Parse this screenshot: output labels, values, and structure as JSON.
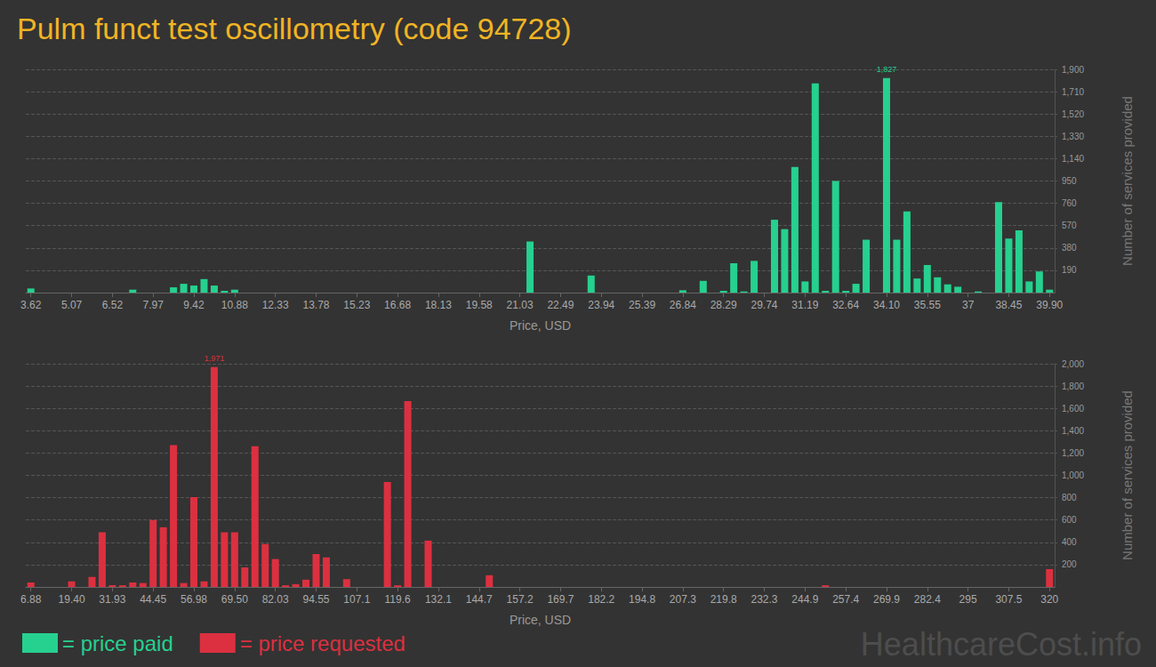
{
  "chart_data": [
    {
      "type": "bar",
      "title": "Pulm funct test oscillometry (code 94728)",
      "x_label": "Price, USD",
      "y_label": "Number of services provided",
      "categories": [
        "3.62",
        null,
        null,
        null,
        "5.07",
        null,
        null,
        null,
        "6.52",
        null,
        null,
        null,
        "7.97",
        null,
        null,
        null,
        "9.42",
        null,
        null,
        null,
        "10.88",
        null,
        null,
        null,
        "12.33",
        null,
        null,
        null,
        "13.78",
        null,
        null,
        null,
        "15.23",
        null,
        null,
        null,
        "16.68",
        null,
        null,
        null,
        "18.13",
        null,
        null,
        null,
        "19.58",
        null,
        null,
        null,
        "21.03",
        null,
        null,
        null,
        "22.49",
        null,
        null,
        null,
        "23.94",
        null,
        null,
        null,
        "25.39",
        null,
        null,
        null,
        "26.84",
        null,
        null,
        null,
        "28.29",
        null,
        null,
        null,
        "29.74",
        null,
        null,
        null,
        "31.19",
        null,
        null,
        null,
        "32.64",
        null,
        null,
        null,
        "34.10",
        null,
        null,
        null,
        "35.55",
        null,
        null,
        null,
        "37",
        null,
        null,
        null,
        "38.45",
        null,
        null,
        null,
        "39.90"
      ],
      "series": [
        {
          "name": "= price paid",
          "color": "#26d08f",
          "values": [
            35,
            0,
            0,
            0,
            0,
            0,
            0,
            0,
            0,
            0,
            25,
            0,
            0,
            0,
            45,
            75,
            60,
            115,
            60,
            15,
            25,
            0,
            0,
            0,
            0,
            0,
            0,
            0,
            0,
            0,
            0,
            0,
            0,
            0,
            0,
            0,
            0,
            0,
            0,
            0,
            0,
            0,
            0,
            0,
            0,
            0,
            0,
            0,
            0,
            435,
            0,
            0,
            0,
            0,
            0,
            145,
            0,
            0,
            0,
            0,
            0,
            0,
            0,
            0,
            20,
            0,
            100,
            0,
            15,
            250,
            10,
            270,
            0,
            620,
            540,
            1070,
            95,
            1780,
            15,
            950,
            15,
            75,
            450,
            0,
            1827,
            450,
            690,
            120,
            235,
            130,
            70,
            50,
            0,
            10,
            0,
            770,
            460,
            530,
            95,
            180,
            25
          ]
        }
      ],
      "annotations": [
        {
          "text": "1,827",
          "value": 1827
        }
      ],
      "ylim": [
        0,
        1900
      ],
      "yticks": [
        190,
        380,
        570,
        760,
        950,
        {
          "value": 1140,
          "label": "1,140"
        },
        {
          "value": 1330,
          "label": "1,330"
        },
        {
          "value": 1520,
          "label": "1,520"
        },
        {
          "value": 1710,
          "label": "1,710"
        },
        {
          "value": 1900,
          "label": "1,900"
        }
      ],
      "grid": true,
      "legend": "bottom-left"
    },
    {
      "type": "bar",
      "x_label": "Price, USD",
      "y_label": "Number of services provided",
      "categories": [
        "6.88",
        null,
        null,
        null,
        "19.40",
        null,
        null,
        null,
        "31.93",
        null,
        null,
        null,
        "44.45",
        null,
        null,
        null,
        "56.98",
        null,
        null,
        null,
        "69.50",
        null,
        null,
        null,
        "82.03",
        null,
        null,
        null,
        "94.55",
        null,
        null,
        null,
        "107.1",
        null,
        null,
        null,
        "119.6",
        null,
        null,
        null,
        "132.1",
        null,
        null,
        null,
        "144.7",
        null,
        null,
        null,
        "157.2",
        null,
        null,
        null,
        "169.7",
        null,
        null,
        null,
        "182.2",
        null,
        null,
        null,
        "194.8",
        null,
        null,
        null,
        "207.3",
        null,
        null,
        null,
        "219.8",
        null,
        null,
        null,
        "232.3",
        null,
        null,
        null,
        "244.9",
        null,
        null,
        null,
        "257.4",
        null,
        null,
        null,
        "269.9",
        null,
        null,
        null,
        "282.4",
        null,
        null,
        null,
        "295",
        null,
        null,
        null,
        "307.5",
        null,
        null,
        null,
        "320"
      ],
      "series": [
        {
          "name": "= price requested",
          "color": "#dc3040",
          "values": [
            40,
            0,
            0,
            0,
            50,
            0,
            90,
            490,
            15,
            15,
            40,
            35,
            600,
            535,
            1270,
            35,
            805,
            50,
            1971,
            490,
            490,
            175,
            1260,
            385,
            250,
            15,
            25,
            65,
            295,
            265,
            0,
            70,
            0,
            0,
            0,
            940,
            15,
            1665,
            0,
            415,
            0,
            0,
            0,
            0,
            0,
            105,
            0,
            0,
            0,
            0,
            0,
            0,
            0,
            0,
            0,
            0,
            0,
            0,
            0,
            0,
            0,
            0,
            0,
            0,
            0,
            0,
            0,
            0,
            0,
            0,
            0,
            0,
            0,
            0,
            0,
            0,
            0,
            0,
            15,
            0,
            0,
            0,
            0,
            0,
            0,
            0,
            0,
            0,
            0,
            0,
            0,
            0,
            0,
            0,
            0,
            0,
            0,
            0,
            0,
            0,
            160
          ]
        }
      ],
      "annotations": [
        {
          "text": "1,971",
          "value": 1971
        }
      ],
      "ylim": [
        0,
        2000
      ],
      "yticks": [
        200,
        400,
        600,
        800,
        {
          "value": 1000,
          "label": "1,000"
        },
        {
          "value": 1200,
          "label": "1,200"
        },
        {
          "value": 1400,
          "label": "1,400"
        },
        {
          "value": 1600,
          "label": "1,600"
        },
        {
          "value": 1800,
          "label": "1,800"
        },
        {
          "value": 2000,
          "label": "2,000"
        }
      ],
      "grid": true
    }
  ],
  "watermark": "HealthcareCost.info"
}
